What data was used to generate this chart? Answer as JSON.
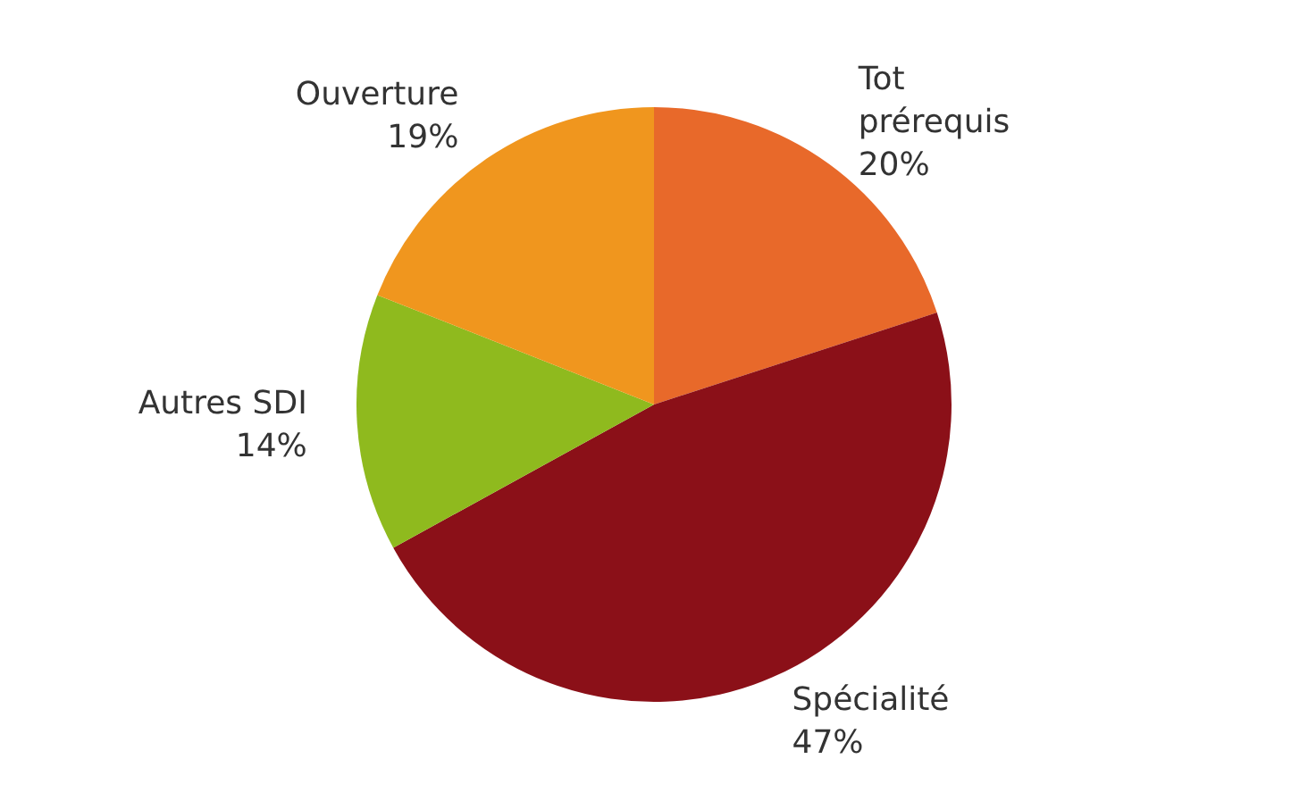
{
  "chart_data": {
    "type": "pie",
    "categories": [
      "Tot prérequis",
      "Spécialité",
      "Autres SDI",
      "Ouverture"
    ],
    "values": [
      20,
      47,
      14,
      19
    ],
    "colors": [
      "#e8692a",
      "#8b1018",
      "#8fba1e",
      "#f0961e"
    ],
    "value_labels": [
      "20%",
      "47%",
      "14%",
      "19%"
    ]
  }
}
